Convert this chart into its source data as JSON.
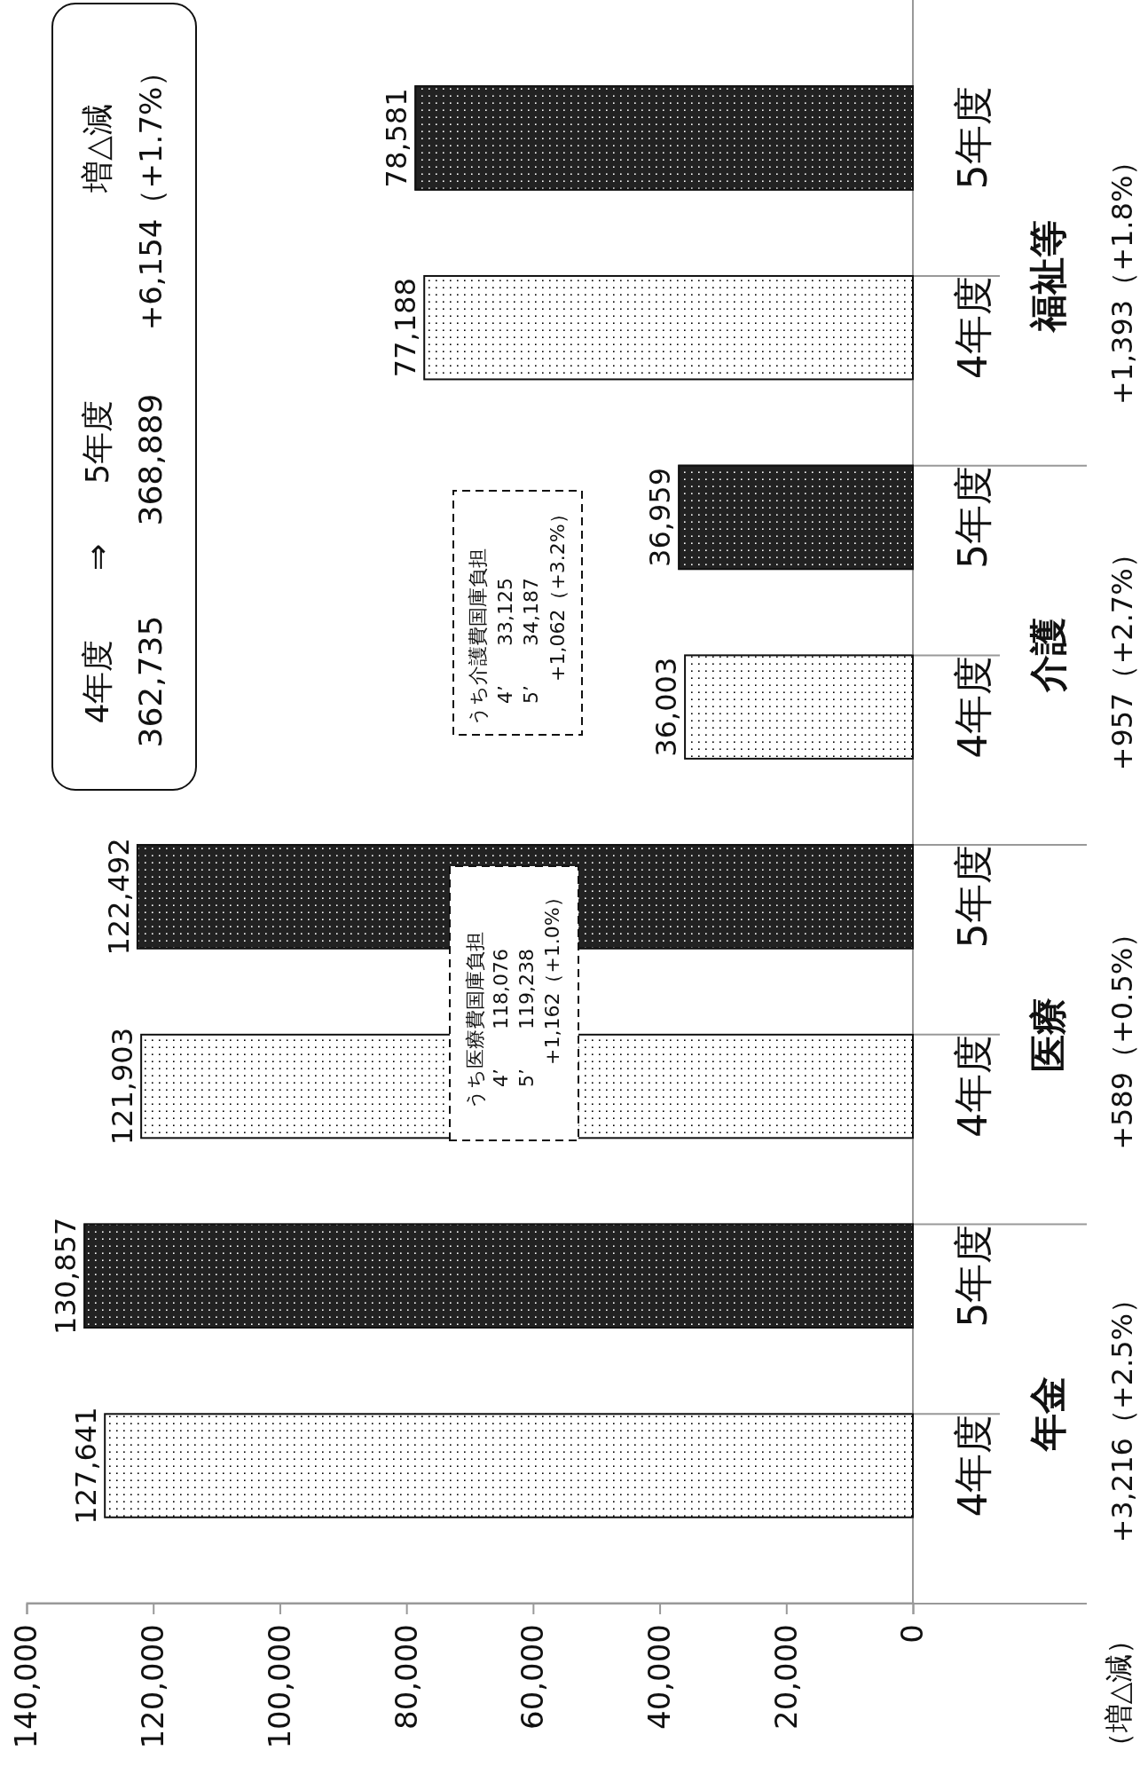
{
  "chart_data": {
    "type": "bar",
    "orientation": "horizontal",
    "categories": [
      "福祉等",
      "介護",
      "医療",
      "年金"
    ],
    "series": [
      {
        "name": "4年度",
        "color": "#ffffff",
        "values": [
          77188,
          36003,
          121903,
          127641
        ],
        "value_labels": [
          "77,188",
          "36,003",
          "121,903",
          "127,641"
        ]
      },
      {
        "name": "5年度",
        "color": "#222222",
        "values": [
          78581,
          36959,
          122492,
          130857
        ],
        "value_labels": [
          "78,581",
          "36,959",
          "122,492",
          "130,857"
        ]
      }
    ],
    "xlim": [
      140000,
      0
    ],
    "xticks": [
      {
        "value": 140000,
        "label": "140,000"
      },
      {
        "value": 120000,
        "label": "120,000"
      },
      {
        "value": 100000,
        "label": "100,000"
      },
      {
        "value": 80000,
        "label": "80,000"
      },
      {
        "value": 60000,
        "label": "60,000"
      },
      {
        "value": 40000,
        "label": "40,000"
      },
      {
        "value": 20000,
        "label": "20,000"
      },
      0
    ],
    "grid": false,
    "legend": false,
    "annotations": [
      "+1,393（+1.8%）",
      "+957（+2.7%）",
      "+589（+0.5%）",
      "+3,216（+2.5%）",
      "（増△減）",
      "4年度",
      "⇒",
      "5年度",
      "増△減",
      "362,735",
      "368,889",
      "+6,154（+1.7%）",
      "うち介護費国庫負担",
      "4’　　33,125",
      "5’　　34,187",
      "+1,062（+3.2%）",
      "うち医療費国庫負担",
      "4’　　118,076",
      "5’　　119,238",
      "+1,162（+1.0%）"
    ]
  }
}
